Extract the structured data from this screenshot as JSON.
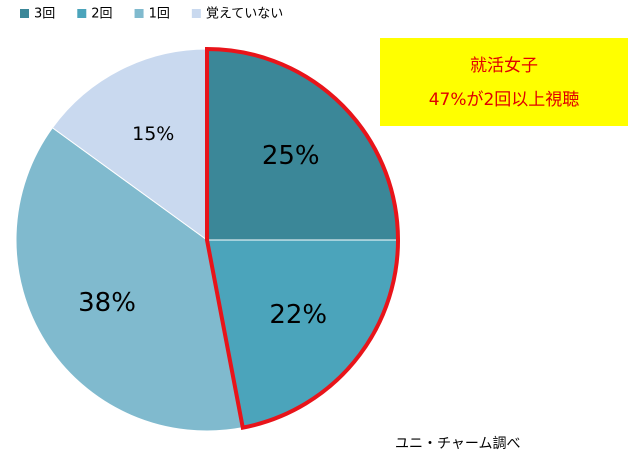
{
  "chart_data": {
    "type": "pie",
    "categories": [
      "3回",
      "2回",
      "1回",
      "覚えていない"
    ],
    "values": [
      25,
      22,
      38,
      15
    ],
    "value_labels": [
      "25%",
      "22%",
      "38%",
      "15%"
    ],
    "colors": [
      "#3b8798",
      "#4ba4bb",
      "#80bace",
      "#c9d9ef"
    ],
    "legend": "top",
    "annotation": {
      "lines": [
        "就活女子",
        "47%が2回以上視聴"
      ]
    },
    "source": "ユニ・チャーム調べ"
  }
}
